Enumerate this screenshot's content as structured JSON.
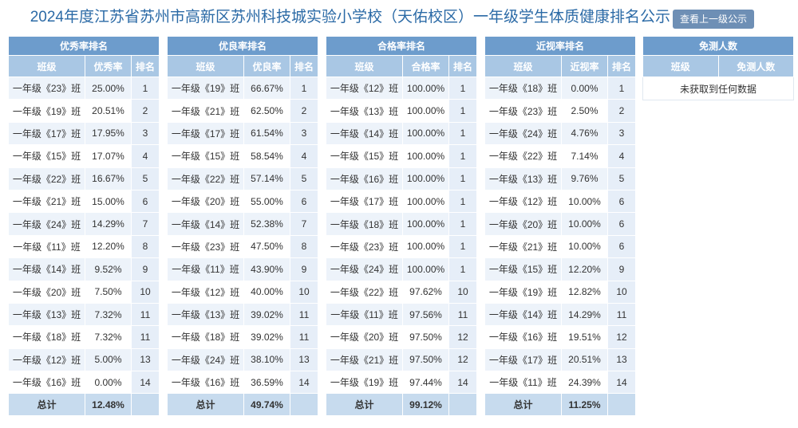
{
  "header": {
    "title": "2024年度江苏省苏州市高新区苏州科技城实验小学校（天佑校区）一年级学生体质健康排名公示",
    "button": "查看上一级公示"
  },
  "tables": [
    {
      "title": "优秀率排名",
      "columns": [
        "班级",
        "优秀率",
        "排名"
      ],
      "rows": [
        [
          "一年级《23》班",
          "25.00%",
          "1"
        ],
        [
          "一年级《19》班",
          "20.51%",
          "2"
        ],
        [
          "一年级《17》班",
          "17.95%",
          "3"
        ],
        [
          "一年级《15》班",
          "17.07%",
          "4"
        ],
        [
          "一年级《22》班",
          "16.67%",
          "5"
        ],
        [
          "一年级《21》班",
          "15.00%",
          "6"
        ],
        [
          "一年级《24》班",
          "14.29%",
          "7"
        ],
        [
          "一年级《11》班",
          "12.20%",
          "8"
        ],
        [
          "一年级《14》班",
          "9.52%",
          "9"
        ],
        [
          "一年级《20》班",
          "7.50%",
          "10"
        ],
        [
          "一年级《13》班",
          "7.32%",
          "11"
        ],
        [
          "一年级《18》班",
          "7.32%",
          "11"
        ],
        [
          "一年级《12》班",
          "5.00%",
          "13"
        ],
        [
          "一年级《16》班",
          "0.00%",
          "14"
        ]
      ],
      "total": [
        "总计",
        "12.48%"
      ]
    },
    {
      "title": "优良率排名",
      "columns": [
        "班级",
        "优良率",
        "排名"
      ],
      "rows": [
        [
          "一年级《19》班",
          "66.67%",
          "1"
        ],
        [
          "一年级《21》班",
          "62.50%",
          "2"
        ],
        [
          "一年级《17》班",
          "61.54%",
          "3"
        ],
        [
          "一年级《15》班",
          "58.54%",
          "4"
        ],
        [
          "一年级《22》班",
          "57.14%",
          "5"
        ],
        [
          "一年级《20》班",
          "55.00%",
          "6"
        ],
        [
          "一年级《14》班",
          "52.38%",
          "7"
        ],
        [
          "一年级《23》班",
          "47.50%",
          "8"
        ],
        [
          "一年级《11》班",
          "43.90%",
          "9"
        ],
        [
          "一年级《12》班",
          "40.00%",
          "10"
        ],
        [
          "一年级《13》班",
          "39.02%",
          "11"
        ],
        [
          "一年级《18》班",
          "39.02%",
          "11"
        ],
        [
          "一年级《24》班",
          "38.10%",
          "13"
        ],
        [
          "一年级《16》班",
          "36.59%",
          "14"
        ]
      ],
      "total": [
        "总计",
        "49.74%"
      ]
    },
    {
      "title": "合格率排名",
      "columns": [
        "班级",
        "合格率",
        "排名"
      ],
      "rows": [
        [
          "一年级《12》班",
          "100.00%",
          "1"
        ],
        [
          "一年级《13》班",
          "100.00%",
          "1"
        ],
        [
          "一年级《14》班",
          "100.00%",
          "1"
        ],
        [
          "一年级《15》班",
          "100.00%",
          "1"
        ],
        [
          "一年级《16》班",
          "100.00%",
          "1"
        ],
        [
          "一年级《17》班",
          "100.00%",
          "1"
        ],
        [
          "一年级《18》班",
          "100.00%",
          "1"
        ],
        [
          "一年级《23》班",
          "100.00%",
          "1"
        ],
        [
          "一年级《24》班",
          "100.00%",
          "1"
        ],
        [
          "一年级《22》班",
          "97.62%",
          "10"
        ],
        [
          "一年级《11》班",
          "97.56%",
          "11"
        ],
        [
          "一年级《20》班",
          "97.50%",
          "12"
        ],
        [
          "一年级《21》班",
          "97.50%",
          "12"
        ],
        [
          "一年级《19》班",
          "97.44%",
          "14"
        ]
      ],
      "total": [
        "总计",
        "99.12%"
      ]
    },
    {
      "title": "近视率排名",
      "columns": [
        "班级",
        "近视率",
        "排名"
      ],
      "rows": [
        [
          "一年级《18》班",
          "0.00%",
          "1"
        ],
        [
          "一年级《23》班",
          "2.50%",
          "2"
        ],
        [
          "一年级《24》班",
          "4.76%",
          "3"
        ],
        [
          "一年级《22》班",
          "7.14%",
          "4"
        ],
        [
          "一年级《13》班",
          "9.76%",
          "5"
        ],
        [
          "一年级《12》班",
          "10.00%",
          "6"
        ],
        [
          "一年级《20》班",
          "10.00%",
          "6"
        ],
        [
          "一年级《21》班",
          "10.00%",
          "6"
        ],
        [
          "一年级《15》班",
          "12.20%",
          "9"
        ],
        [
          "一年级《19》班",
          "12.82%",
          "10"
        ],
        [
          "一年级《14》班",
          "14.29%",
          "11"
        ],
        [
          "一年级《16》班",
          "19.51%",
          "12"
        ],
        [
          "一年级《17》班",
          "20.51%",
          "13"
        ],
        [
          "一年级《11》班",
          "24.39%",
          "14"
        ]
      ],
      "total": [
        "总计",
        "11.25%"
      ]
    }
  ],
  "empty_table": {
    "title": "免测人数",
    "columns": [
      "班级",
      "免测人数"
    ],
    "message": "未获取到任何数据"
  }
}
